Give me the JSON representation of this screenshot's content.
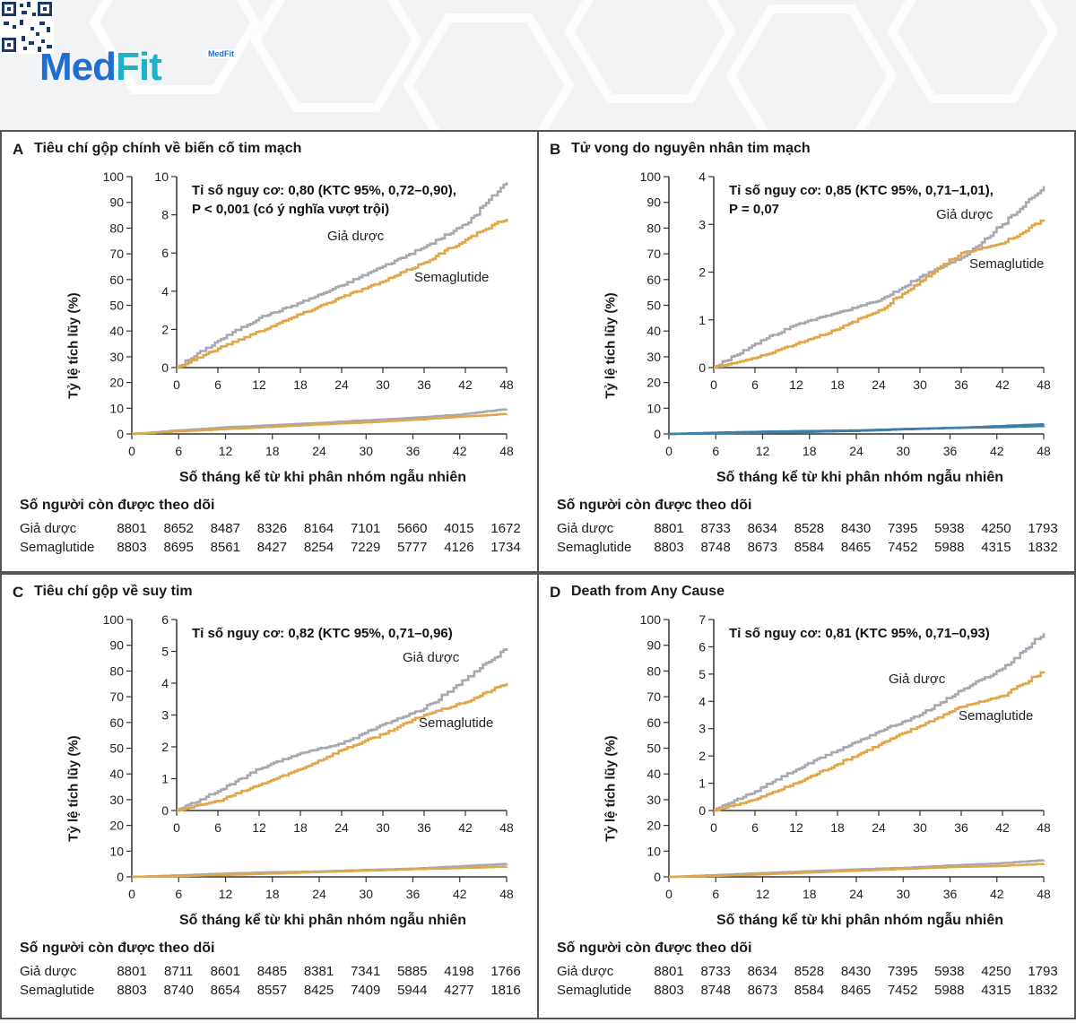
{
  "brand": {
    "logo_part1": "Med",
    "logo_part2": "Fit",
    "qr_label": "MedFit"
  },
  "colors": {
    "placebo": "#a8a8b0",
    "semaglutide": "#e0a64a",
    "panel_b_inset": "#3d7fa8"
  },
  "risk_header": "Số người còn được theo dõi",
  "x_label": "Số tháng kể từ khi phân nhóm ngẫu nhiên",
  "y_label": "Tỷ lệ tích lũy (%)",
  "chart_data": [
    {
      "id": "A",
      "letter": "A",
      "title": "Tiêu chí gộp chính về biến cố tim mạch",
      "type": "line",
      "stat_lines": [
        "Tỉ số nguy cơ: 0,80 (KTC 95%, 0,72–0,90),",
        "P < 0,001 (có ý nghĩa vượt trội)"
      ],
      "legend": {
        "placebo": "Giả dược",
        "semaglutide": "Semaglutide"
      },
      "xlabel": "Số tháng kể từ khi phân nhóm ngẫu nhiên",
      "ylabel": "Tỷ lệ tích lũy (%)",
      "x": [
        0,
        6,
        12,
        18,
        24,
        30,
        36,
        42,
        48
      ],
      "outer_ylim": [
        0,
        100
      ],
      "outer_yticks": [
        0,
        10,
        20,
        30,
        40,
        50,
        60,
        70,
        80,
        90,
        100
      ],
      "inner_ylim": [
        0,
        10
      ],
      "inner_yticks": [
        0,
        2,
        4,
        6,
        8,
        10
      ],
      "series": [
        {
          "name": "Giả dược",
          "values": [
            0,
            1.4,
            2.6,
            3.4,
            4.3,
            5.3,
            6.3,
            7.5,
            9.7
          ]
        },
        {
          "name": "Semaglutide",
          "values": [
            0,
            1.0,
            1.9,
            2.8,
            3.7,
            4.5,
            5.5,
            6.7,
            7.8
          ]
        }
      ],
      "risk_table": [
        {
          "label": "Giả dược",
          "values": [
            8801,
            8652,
            8487,
            8326,
            8164,
            7101,
            5660,
            4015,
            1672
          ]
        },
        {
          "label": "Semaglutide",
          "values": [
            8803,
            8695,
            8561,
            8427,
            8254,
            7229,
            5777,
            4126,
            1734
          ]
        }
      ]
    },
    {
      "id": "B",
      "letter": "B",
      "title": "Tử vong do nguyên nhân tim mạch",
      "type": "line",
      "stat_lines": [
        "Tỉ số nguy cơ: 0,85 (KTC 95%, 0,71–1,01),",
        "P = 0,07"
      ],
      "legend": {
        "placebo": "Giả dược",
        "semaglutide": "Semaglutide"
      },
      "xlabel": "Số tháng kể từ khi phân nhóm ngẫu nhiên",
      "ylabel": "Tỷ lệ tích lũy (%)",
      "x": [
        0,
        6,
        12,
        18,
        24,
        30,
        36,
        42,
        48
      ],
      "outer_ylim": [
        0,
        100
      ],
      "outer_yticks": [
        0,
        10,
        20,
        30,
        40,
        50,
        60,
        70,
        80,
        90,
        100
      ],
      "inner_ylim": [
        0,
        4
      ],
      "inner_yticks": [
        0,
        1,
        2,
        3,
        4
      ],
      "series": [
        {
          "name": "Giả dược",
          "values": [
            0,
            0.5,
            0.9,
            1.15,
            1.4,
            1.9,
            2.3,
            3.0,
            3.8
          ]
        },
        {
          "name": "Semaglutide",
          "values": [
            0,
            0.2,
            0.5,
            0.8,
            1.2,
            1.8,
            2.4,
            2.6,
            3.1
          ]
        }
      ],
      "risk_table": [
        {
          "label": "Giả dược",
          "values": [
            8801,
            8733,
            8634,
            8528,
            8430,
            7395,
            5938,
            4250,
            1793
          ]
        },
        {
          "label": "Semaglutide",
          "values": [
            8803,
            8748,
            8673,
            8584,
            8465,
            7452,
            5988,
            4315,
            1832
          ]
        }
      ]
    },
    {
      "id": "C",
      "letter": "C",
      "title": "Tiêu chí gộp về suy tim",
      "type": "line",
      "stat_lines": [
        "Tỉ số nguy cơ: 0,82 (KTC 95%, 0,71–0,96)"
      ],
      "legend": {
        "placebo": "Giả dược",
        "semaglutide": "Semaglutide"
      },
      "xlabel": "Số tháng kể từ khi phân nhóm ngẫu nhiên",
      "ylabel": "Tỷ lệ tích lũy (%)",
      "x": [
        0,
        6,
        12,
        18,
        24,
        30,
        36,
        42,
        48
      ],
      "outer_ylim": [
        0,
        100
      ],
      "outer_yticks": [
        0,
        10,
        20,
        30,
        40,
        50,
        60,
        70,
        80,
        90,
        100
      ],
      "inner_ylim": [
        0,
        6
      ],
      "inner_yticks": [
        0,
        1,
        2,
        3,
        4,
        5,
        6
      ],
      "series": [
        {
          "name": "Giả dược",
          "values": [
            0,
            0.6,
            1.3,
            1.8,
            2.1,
            2.7,
            3.2,
            4.1,
            5.1
          ]
        },
        {
          "name": "Semaglutide",
          "values": [
            0,
            0.3,
            0.8,
            1.3,
            1.9,
            2.4,
            3.0,
            3.4,
            4.0
          ]
        }
      ],
      "risk_table": [
        {
          "label": "Giả dược",
          "values": [
            8801,
            8711,
            8601,
            8485,
            8381,
            7341,
            5885,
            4198,
            1766
          ]
        },
        {
          "label": "Semaglutide",
          "values": [
            8803,
            8740,
            8654,
            8557,
            8425,
            7409,
            5944,
            4277,
            1816
          ]
        }
      ]
    },
    {
      "id": "D",
      "letter": "D",
      "title": "Death from Any Cause",
      "type": "line",
      "stat_lines": [
        "Tỉ số nguy cơ: 0,81 (KTC 95%, 0,71–0,93)"
      ],
      "legend": {
        "placebo": "Giả dược",
        "semaglutide": "Semaglutide"
      },
      "xlabel": "Số tháng kể từ khi phân nhóm ngẫu nhiên",
      "ylabel": "Tỷ lệ tích lũy (%)",
      "x": [
        0,
        6,
        12,
        18,
        24,
        30,
        36,
        42,
        48
      ],
      "outer_ylim": [
        0,
        100
      ],
      "outer_yticks": [
        0,
        10,
        20,
        30,
        40,
        50,
        60,
        70,
        80,
        90,
        100
      ],
      "inner_ylim": [
        0,
        7
      ],
      "inner_yticks": [
        0,
        1,
        2,
        3,
        4,
        5,
        6,
        7
      ],
      "series": [
        {
          "name": "Giả dược",
          "values": [
            0,
            0.7,
            1.5,
            2.2,
            2.9,
            3.5,
            4.4,
            5.2,
            6.5
          ]
        },
        {
          "name": "Semaglutide",
          "values": [
            0,
            0.4,
            1.0,
            1.7,
            2.4,
            3.1,
            3.8,
            4.2,
            5.1
          ]
        }
      ],
      "risk_table": [
        {
          "label": "Giả dược",
          "values": [
            8801,
            8733,
            8634,
            8528,
            8430,
            7395,
            5938,
            4250,
            1793
          ]
        },
        {
          "label": "Semaglutide",
          "values": [
            8803,
            8748,
            8673,
            8584,
            8465,
            7452,
            5988,
            4315,
            1832
          ]
        }
      ]
    }
  ]
}
